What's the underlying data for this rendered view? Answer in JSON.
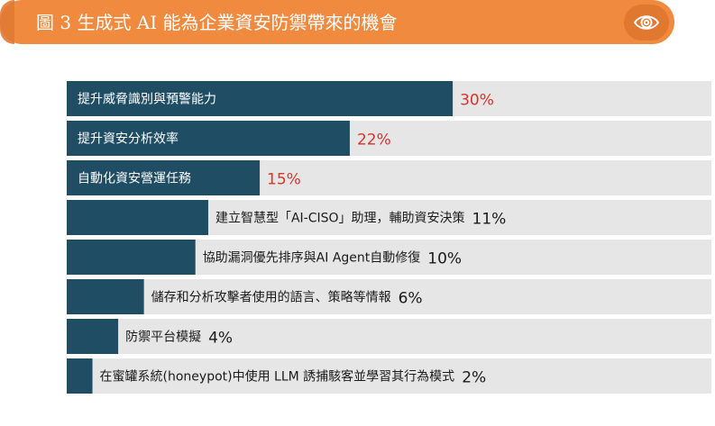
{
  "header": {
    "title": "圖 3 生成式 AI 能為企業資安防禦帶來的機會",
    "icon": "eye-icon"
  },
  "colors": {
    "header_bg": "#ef8a3f",
    "header_notch": "#e07a33",
    "eye_badge_bg": "#e0782f",
    "eye_stroke": "#ffffff",
    "bar_fill": "#1f4d63",
    "track_fill": "#e6e6e6",
    "label_inside": "#ffffff",
    "label_outside": "#1a1a1a",
    "value_highlight": "#d9332b",
    "value_normal": "#1a1a1a"
  },
  "chart_data": {
    "type": "bar",
    "orientation": "horizontal",
    "title": "圖 3 生成式 AI 能為企業資安防禦帶來的機會",
    "xlim": [
      0,
      100
    ],
    "unit": "%",
    "categories": [
      "提升威脅識別與預警能力",
      "提升資安分析效率",
      "自動化資安營運任務",
      "建立智慧型「AI-CISO」助理，輔助資安決策",
      "協助漏洞優先排序與AI Agent自動修復",
      "儲存和分析攻擊者使用的語言、策略等情報",
      "防禦平台模擬",
      "在蜜罐系統(honeypot)中使用 LLM 誘捕駭客並學習其行為模式"
    ],
    "values": [
      30,
      22,
      15,
      11,
      10,
      6,
      4,
      2
    ],
    "value_labels": [
      "30%",
      "22%",
      "15%",
      "11%",
      "10%",
      "6%",
      "4%",
      "2%"
    ],
    "label_inside_bar": [
      true,
      true,
      true,
      false,
      false,
      false,
      false,
      false
    ],
    "value_highlighted": [
      true,
      true,
      true,
      false,
      false,
      false,
      false,
      false
    ]
  }
}
